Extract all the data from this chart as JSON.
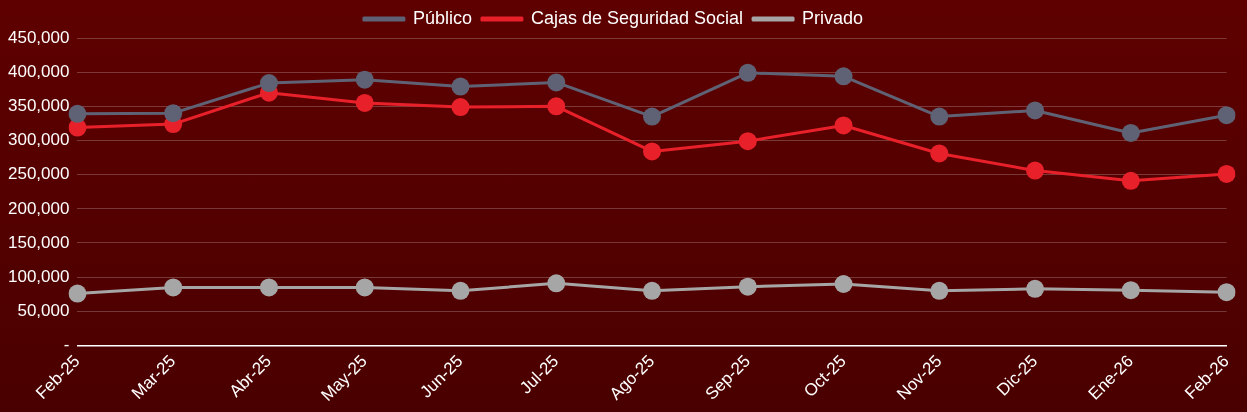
{
  "chart_data": {
    "type": "line",
    "categories": [
      "Feb-25",
      "Mar-25",
      "Abr-25",
      "May-25",
      "Jun-25",
      "Jul-25",
      "Ago-25",
      "Sep-25",
      "Oct-25",
      "Nov-25",
      "Dic-25",
      "Ene-26",
      "Feb-26"
    ],
    "series": [
      {
        "name": "Público",
        "color": "#5f6274",
        "values": [
          339000,
          340000,
          384000,
          389000,
          379000,
          385000,
          335000,
          399000,
          394000,
          335000,
          344000,
          311000,
          337000
        ]
      },
      {
        "name": "Cajas de Seguridad Social",
        "color": "#e8202a",
        "values": [
          319000,
          324000,
          370000,
          355000,
          349000,
          350000,
          284000,
          299000,
          322000,
          281000,
          256000,
          241000,
          251000
        ]
      },
      {
        "name": "Privado",
        "color": "#a6a6a6",
        "values": [
          76000,
          85000,
          85000,
          85000,
          80000,
          91000,
          80000,
          86000,
          90000,
          80000,
          83000,
          81000,
          78000
        ]
      }
    ],
    "ylim": [
      0,
      450000
    ],
    "yticks": [
      {
        "value": 0,
        "label": "-"
      },
      {
        "value": 50000,
        "label": "50,000"
      },
      {
        "value": 100000,
        "label": "100,000"
      },
      {
        "value": 150000,
        "label": "150,000"
      },
      {
        "value": 200000,
        "label": "200,000"
      },
      {
        "value": 250000,
        "label": "250,000"
      },
      {
        "value": 300000,
        "label": "300,000"
      },
      {
        "value": 350000,
        "label": "350,000"
      },
      {
        "value": 400000,
        "label": "400,000"
      },
      {
        "value": 450000,
        "label": "450,000"
      }
    ],
    "grid": "y",
    "legend": "top",
    "marker": "circle",
    "line_style": "solid"
  }
}
